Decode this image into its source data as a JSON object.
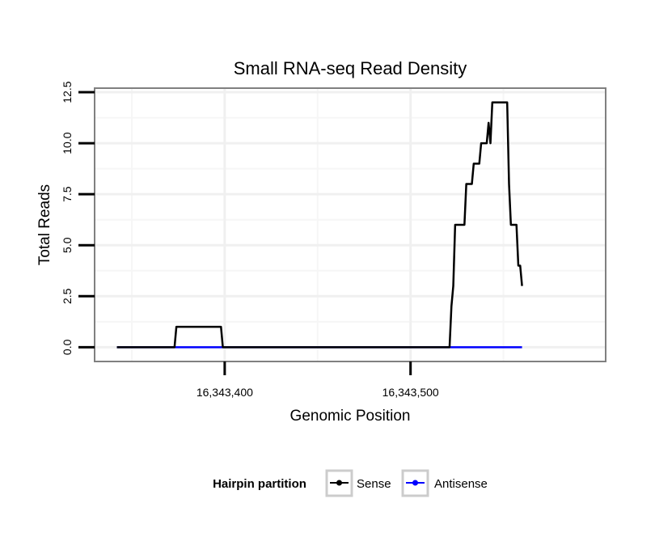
{
  "chart_data": {
    "type": "line",
    "title": "Small RNA-seq Read Density",
    "xlabel": "Genomic Position",
    "ylabel": "Total Reads",
    "xlim": [
      16343330,
      16343605
    ],
    "ylim": [
      -0.7,
      12.7
    ],
    "xticks": [
      {
        "value": 16343400,
        "label": "16,343,400"
      },
      {
        "value": 16343500,
        "label": "16,343,500"
      }
    ],
    "yticks": [
      {
        "value": 0,
        "label": "0.0"
      },
      {
        "value": 2.5,
        "label": "2.5"
      },
      {
        "value": 5,
        "label": "5.0"
      },
      {
        "value": 7.5,
        "label": "7.5"
      },
      {
        "value": 10,
        "label": "10.0"
      },
      {
        "value": 12.5,
        "label": "12.5"
      }
    ],
    "grid": true,
    "legend": {
      "title": "Hairpin partition",
      "position": "bottom"
    },
    "series": [
      {
        "name": "Sense",
        "color": "#000000",
        "x": [
          16343342,
          16343373,
          16343374,
          16343398,
          16343399,
          16343521,
          16343522,
          16343523,
          16343524,
          16343529,
          16343530,
          16343533,
          16343534,
          16343537,
          16343538,
          16343541,
          16343542,
          16343543,
          16343544,
          16343545,
          16343546,
          16343552,
          16343553,
          16343554,
          16343557,
          16343558,
          16343559,
          16343560
        ],
        "y": [
          0,
          0,
          1,
          1,
          0,
          0,
          2,
          3,
          6,
          6,
          8,
          8,
          9,
          9,
          10,
          10,
          11,
          10,
          12,
          12,
          12,
          12,
          8,
          6,
          6,
          4,
          4,
          3
        ]
      },
      {
        "name": "Antisense",
        "color": "#0000ff",
        "x": [
          16343342,
          16343560
        ],
        "y": [
          0,
          0
        ]
      }
    ]
  }
}
